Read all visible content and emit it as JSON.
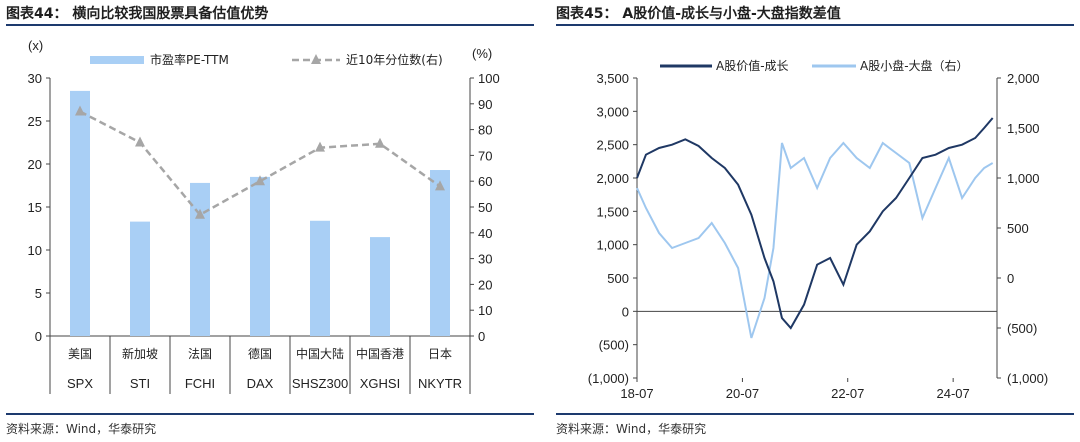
{
  "left": {
    "title": "图表44：  横向比较我国股票具备估值优势",
    "source": "资料来源：Wind，华泰研究",
    "chart_data": {
      "type": "bar",
      "categories_cn": [
        "美国",
        "新加坡",
        "法国",
        "德国",
        "中国大陆",
        "中国香港",
        "日本"
      ],
      "categories": [
        "SPX",
        "STI",
        "FCHI",
        "DAX",
        "SHSZ300",
        "XGHSI",
        "NKYTR"
      ],
      "series": [
        {
          "name": "市盈率PE-TTM",
          "type": "bar",
          "axis": "left",
          "color": "#a9cff5",
          "values": [
            28.5,
            13.3,
            17.8,
            18.5,
            13.4,
            11.5,
            19.3
          ]
        },
        {
          "name": "近10年分位数(右)",
          "type": "line",
          "axis": "right",
          "color": "#a6a6a6",
          "values": [
            87,
            75,
            47,
            60,
            73,
            74.5,
            58
          ]
        }
      ],
      "ylabel_left": "(x)",
      "ylabel_right": "(%)",
      "ylim_left": [
        0,
        30
      ],
      "ylim_right": [
        0,
        100
      ],
      "yticks_left": [
        "0",
        "5",
        "10",
        "15",
        "20",
        "25",
        "30"
      ],
      "yticks_right": [
        "0",
        "10",
        "20",
        "30",
        "40",
        "50",
        "60",
        "70",
        "80",
        "90",
        "100"
      ],
      "grid": false,
      "legend_position": "top"
    }
  },
  "right": {
    "title": "图表45：  A股价值-成长与小盘-大盘指数差值",
    "source": "资料来源：Wind，华泰研究",
    "chart_data": {
      "type": "line",
      "x_ticks": [
        "18-07",
        "20-07",
        "22-07",
        "24-07"
      ],
      "x": [
        "2018-07",
        "2018-09",
        "2018-12",
        "2019-03",
        "2019-06",
        "2019-09",
        "2019-12",
        "2020-03",
        "2020-06",
        "2020-09",
        "2020-12",
        "2021-02",
        "2021-04",
        "2021-06",
        "2021-09",
        "2021-12",
        "2022-03",
        "2022-06",
        "2022-09",
        "2022-12",
        "2023-03",
        "2023-06",
        "2023-09",
        "2023-12",
        "2024-03",
        "2024-06",
        "2024-09",
        "2024-12",
        "2025-02",
        "2025-04"
      ],
      "series": [
        {
          "name": "A股价值-成长",
          "axis": "left",
          "color": "#1f3864",
          "values": [
            2000,
            2350,
            2450,
            2500,
            2580,
            2480,
            2300,
            2150,
            1900,
            1450,
            800,
            450,
            -100,
            -250,
            100,
            700,
            800,
            400,
            1000,
            1200,
            1500,
            1700,
            2000,
            2300,
            2350,
            2450,
            2500,
            2600,
            2750,
            2900
          ]
        },
        {
          "name": "A股小盘-大盘（右）",
          "axis": "right",
          "color": "#9ec7ef",
          "values": [
            900,
            700,
            450,
            300,
            350,
            400,
            550,
            350,
            100,
            -600,
            -200,
            300,
            1350,
            1100,
            1200,
            900,
            1200,
            1350,
            1200,
            1100,
            1350,
            1250,
            1150,
            600,
            900,
            1200,
            800,
            1000,
            1100,
            1150
          ]
        }
      ],
      "ylim_left": [
        -1000,
        3500
      ],
      "ylim_right": [
        -1000,
        2000
      ],
      "yticks_left": [
        "(1,000)",
        "(500)",
        "0",
        "500",
        "1,000",
        "1,500",
        "2,000",
        "2,500",
        "3,000",
        "3,500"
      ],
      "yticks_right": [
        "(1,000)",
        "(500)",
        "0",
        "500",
        "1,000",
        "1,500",
        "2,000"
      ],
      "grid": false,
      "legend_position": "top"
    }
  }
}
